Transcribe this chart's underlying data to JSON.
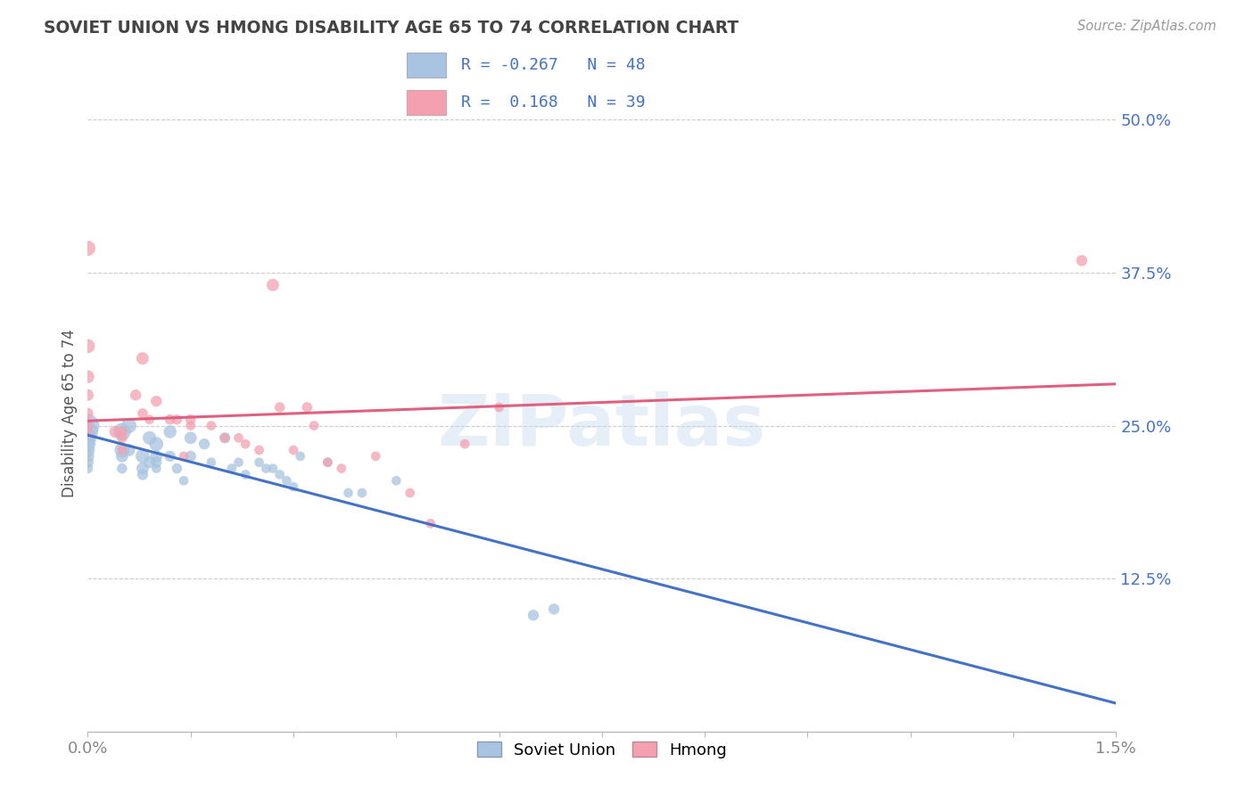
{
  "title": "SOVIET UNION VS HMONG DISABILITY AGE 65 TO 74 CORRELATION CHART",
  "source": "Source: ZipAtlas.com",
  "ylabel": "Disability Age 65 to 74",
  "legend_labels": [
    "Soviet Union",
    "Hmong"
  ],
  "legend_R": [
    -0.267,
    0.168
  ],
  "legend_N": [
    48,
    39
  ],
  "soviet_color": "#a8c4e0",
  "hmong_color": "#f4a0b0",
  "soviet_line_color": "#4472c4",
  "hmong_line_color": "#e06080",
  "watermark": "ZIPatlas",
  "soviet_x": [
    0.0,
    0.0,
    0.0,
    0.0,
    0.0,
    0.0,
    0.0,
    0.0,
    0.05,
    0.05,
    0.05,
    0.05,
    0.06,
    0.06,
    0.08,
    0.08,
    0.08,
    0.09,
    0.09,
    0.1,
    0.1,
    0.1,
    0.1,
    0.12,
    0.12,
    0.13,
    0.14,
    0.15,
    0.15,
    0.17,
    0.18,
    0.2,
    0.21,
    0.22,
    0.23,
    0.25,
    0.26,
    0.27,
    0.28,
    0.29,
    0.3,
    0.31,
    0.35,
    0.38,
    0.4,
    0.45,
    0.65,
    0.68
  ],
  "soviet_y": [
    25.0,
    24.5,
    24.0,
    23.5,
    23.0,
    22.5,
    22.0,
    21.5,
    24.5,
    23.0,
    22.5,
    21.5,
    25.0,
    23.0,
    22.5,
    21.5,
    21.0,
    24.0,
    22.0,
    23.5,
    22.5,
    22.0,
    21.5,
    24.5,
    22.5,
    21.5,
    20.5,
    24.0,
    22.5,
    23.5,
    22.0,
    24.0,
    21.5,
    22.0,
    21.0,
    22.0,
    21.5,
    21.5,
    21.0,
    20.5,
    20.0,
    22.5,
    22.0,
    19.5,
    19.5,
    20.5,
    9.5,
    10.0
  ],
  "soviet_sizes": [
    350,
    280,
    200,
    160,
    130,
    110,
    90,
    70,
    200,
    150,
    100,
    70,
    150,
    100,
    130,
    100,
    80,
    120,
    90,
    130,
    100,
    80,
    60,
    110,
    80,
    70,
    60,
    100,
    80,
    80,
    60,
    80,
    60,
    60,
    60,
    60,
    60,
    60,
    60,
    60,
    60,
    60,
    60,
    60,
    60,
    60,
    80,
    80
  ],
  "hmong_x": [
    0.0,
    0.0,
    0.0,
    0.0,
    0.0,
    0.0,
    0.0,
    0.04,
    0.05,
    0.05,
    0.05,
    0.07,
    0.08,
    0.08,
    0.09,
    0.1,
    0.12,
    0.13,
    0.14,
    0.15,
    0.15,
    0.18,
    0.2,
    0.22,
    0.23,
    0.25,
    0.27,
    0.28,
    0.3,
    0.32,
    0.33,
    0.35,
    0.37,
    0.42,
    0.47,
    0.5,
    0.55,
    0.6,
    1.45
  ],
  "hmong_y": [
    39.5,
    31.5,
    29.0,
    27.5,
    26.0,
    25.0,
    24.5,
    24.5,
    24.5,
    24.0,
    23.0,
    27.5,
    30.5,
    26.0,
    25.5,
    27.0,
    25.5,
    25.5,
    22.5,
    25.5,
    25.0,
    25.0,
    24.0,
    24.0,
    23.5,
    23.0,
    36.5,
    26.5,
    23.0,
    26.5,
    25.0,
    22.0,
    21.5,
    22.5,
    19.5,
    17.0,
    23.5,
    26.5,
    38.5
  ],
  "hmong_sizes": [
    150,
    130,
    110,
    90,
    80,
    70,
    60,
    90,
    80,
    70,
    60,
    80,
    100,
    70,
    60,
    80,
    70,
    70,
    60,
    70,
    60,
    60,
    60,
    60,
    60,
    60,
    100,
    70,
    60,
    70,
    60,
    60,
    60,
    60,
    60,
    60,
    60,
    60,
    80
  ],
  "xmin": 0.0,
  "xmax": 1.5,
  "ymin": 0.0,
  "ymax": 52.0,
  "ytick_positions": [
    12.5,
    25.0,
    37.5,
    50.0
  ],
  "ytick_labels": [
    "12.5%",
    "25.0%",
    "37.5%",
    "50.0%"
  ],
  "xtick_positions": [
    0.0,
    0.15,
    0.3,
    0.45,
    0.6,
    0.75,
    0.9,
    1.05,
    1.2,
    1.35,
    1.5
  ],
  "grid_color": "#cccccc",
  "background_color": "#ffffff",
  "title_color": "#444444",
  "axis_label_color": "#555555",
  "tick_label_color": "#4472c4",
  "xtick_label_color": "#888888"
}
